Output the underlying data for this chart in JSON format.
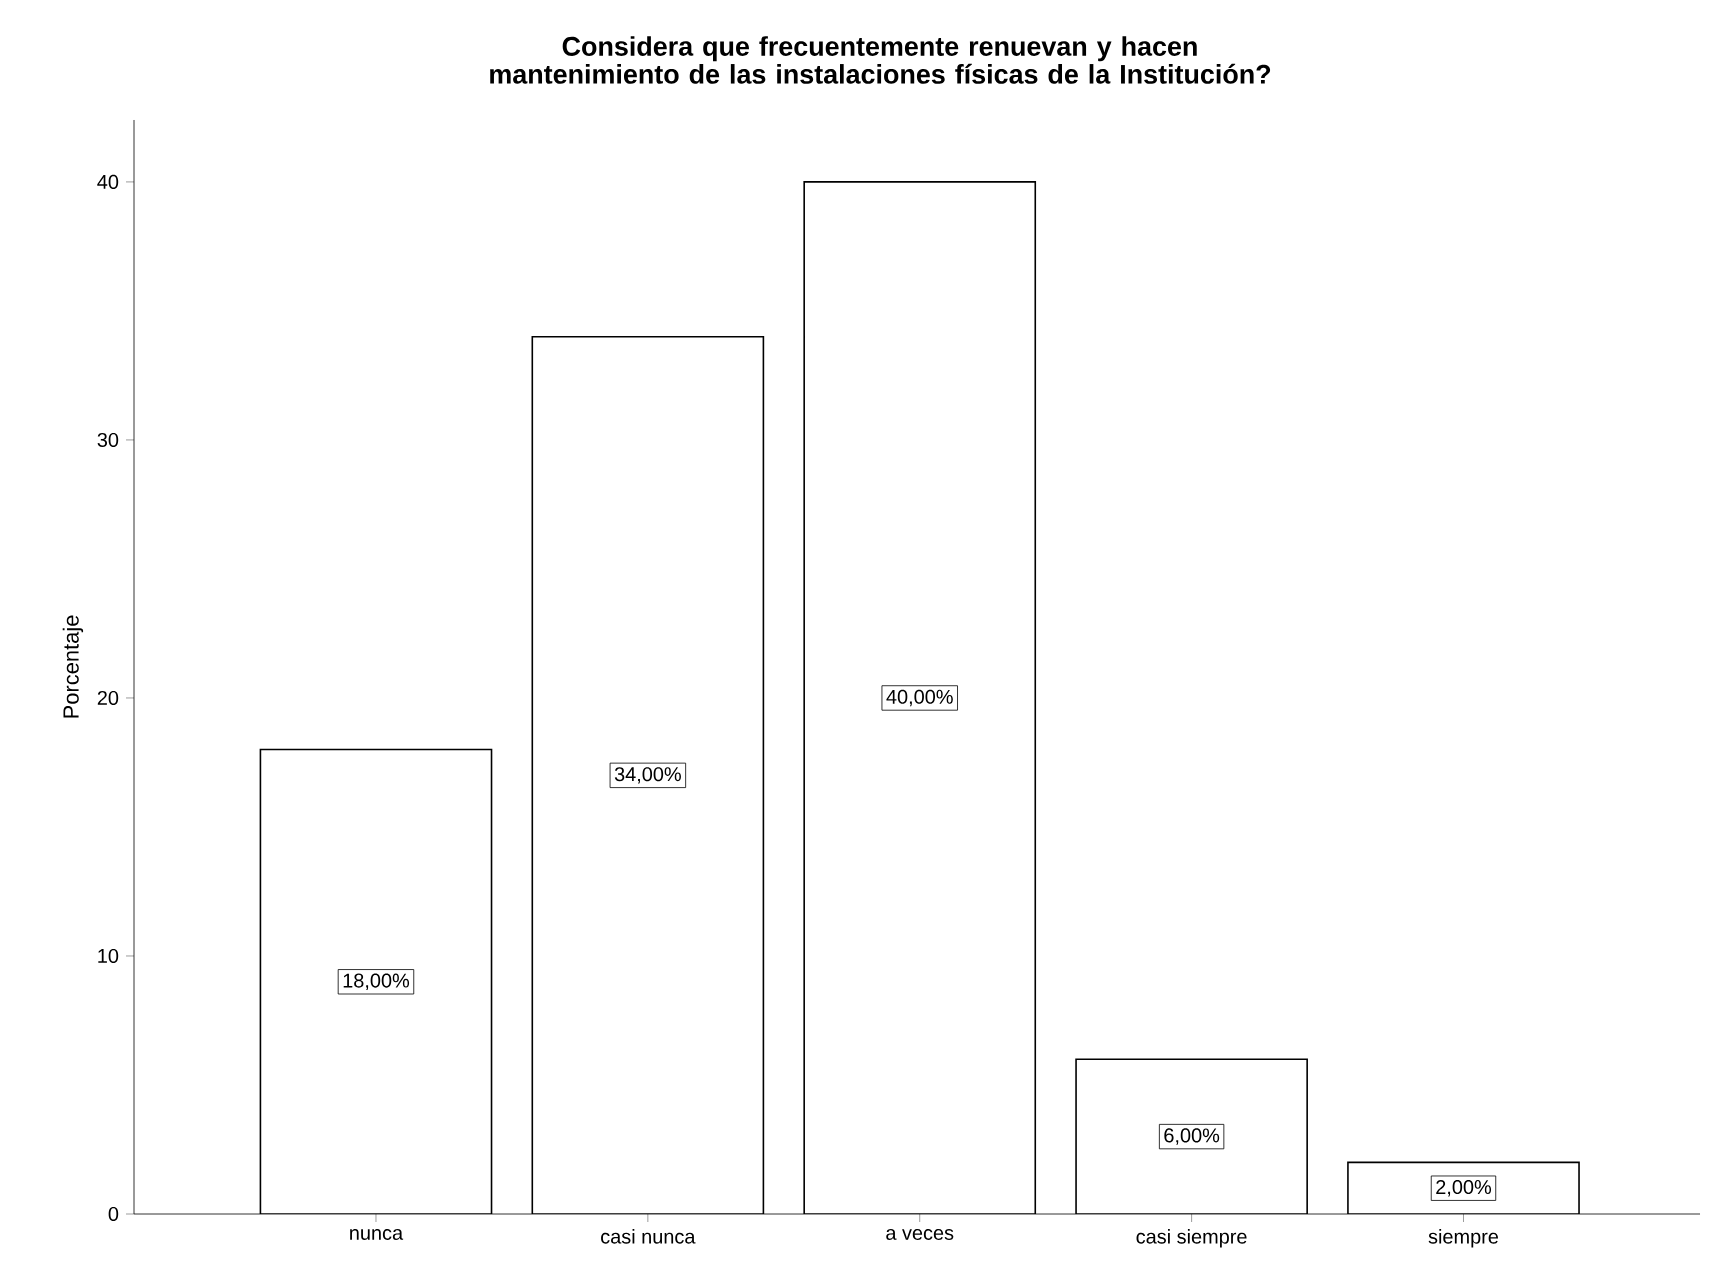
{
  "chart_data": {
    "type": "bar",
    "title": "Considera que frecuentemente renuevan y hacen mantenimiento de las instalaciones físicas de la Institución?",
    "ylabel": "Porcentaje",
    "categories": [
      "nunca",
      "casi nunca",
      "a veces",
      "casi siempre",
      "siempre"
    ],
    "values": [
      18,
      34,
      40,
      6,
      2
    ],
    "value_labels": [
      "18,00%",
      "34,00%",
      "40,00%",
      "6,00%",
      "2,00%"
    ],
    "color": "#ffffff",
    "ylim": [
      0,
      42.4
    ],
    "yticks": [
      0,
      10,
      20,
      30,
      40
    ],
    "grid": false
  }
}
